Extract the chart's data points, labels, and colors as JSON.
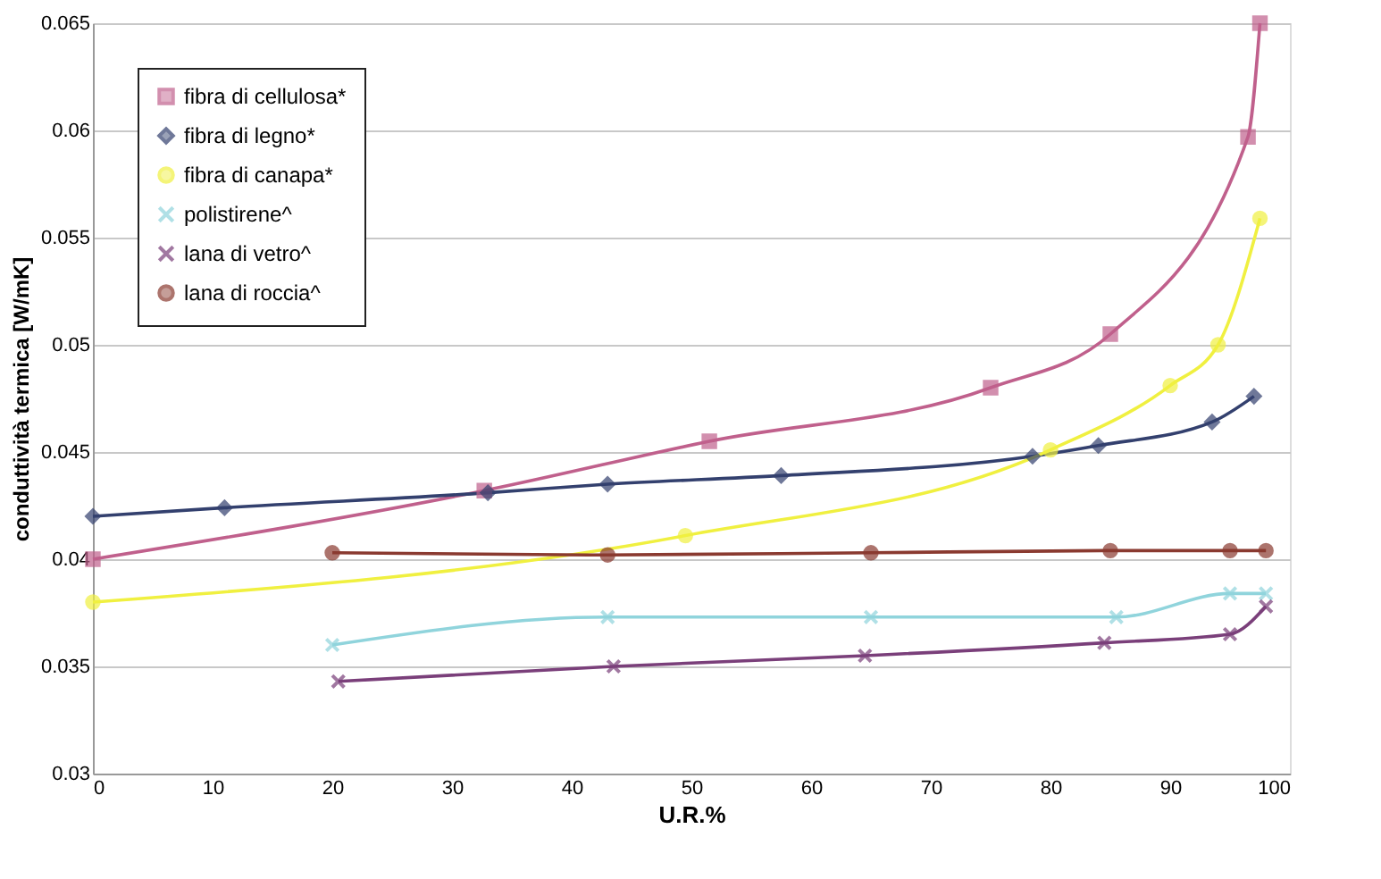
{
  "chart_data": {
    "type": "line",
    "xlabel": "U.R.%",
    "ylabel": "conduttività termica [W/mK]",
    "xlim": [
      0,
      100
    ],
    "xticks": [
      0,
      10,
      20,
      30,
      40,
      50,
      60,
      70,
      80,
      90,
      100
    ],
    "ylim": [
      0.03,
      0.065
    ],
    "yticks": [
      0.03,
      0.035,
      0.04,
      0.045,
      0.05,
      0.055,
      0.06,
      0.065
    ],
    "grid": "y",
    "legend": "top left",
    "line_style": "solid",
    "series": [
      {
        "name": "fibra di cellulosa*",
        "color": "#c0608c",
        "marker": "square",
        "x": [
          0,
          32.7,
          51.5,
          75,
          85,
          96.5,
          97.5
        ],
        "values": [
          0.04,
          0.0432,
          0.0455,
          0.048,
          0.0505,
          0.0597,
          0.065
        ]
      },
      {
        "name": "fibra di legno*",
        "color": "#33406e",
        "marker": "diamond",
        "x": [
          0,
          11,
          33,
          43,
          57.5,
          78.5,
          84,
          93.5,
          97
        ],
        "values": [
          0.042,
          0.0424,
          0.0431,
          0.0435,
          0.0439,
          0.0448,
          0.0453,
          0.0464,
          0.0476
        ]
      },
      {
        "name": "fibra di canapa*",
        "color": "#f0f040",
        "marker": "circle",
        "x": [
          0,
          49.5,
          80,
          90,
          94,
          97.5
        ],
        "values": [
          0.038,
          0.0411,
          0.0451,
          0.0481,
          0.05,
          0.0559
        ]
      },
      {
        "name": "polistirene^",
        "color": "#90d4dc",
        "marker": "cross",
        "x": [
          20,
          43,
          65,
          85.5,
          95,
          98
        ],
        "values": [
          0.036,
          0.0373,
          0.0373,
          0.0373,
          0.0384,
          0.0384
        ]
      },
      {
        "name": "lana di vetro^",
        "color": "#7a3f7a",
        "marker": "cross",
        "x": [
          20.5,
          43.5,
          64.5,
          84.5,
          95,
          98
        ],
        "values": [
          0.0343,
          0.035,
          0.0355,
          0.0361,
          0.0365,
          0.0378
        ]
      },
      {
        "name": "lana di roccia^",
        "color": "#8a3a30",
        "marker": "circle",
        "x": [
          20,
          43,
          65,
          85,
          95,
          98
        ],
        "values": [
          0.0403,
          0.0402,
          0.0403,
          0.0404,
          0.0404,
          0.0404
        ]
      }
    ]
  }
}
